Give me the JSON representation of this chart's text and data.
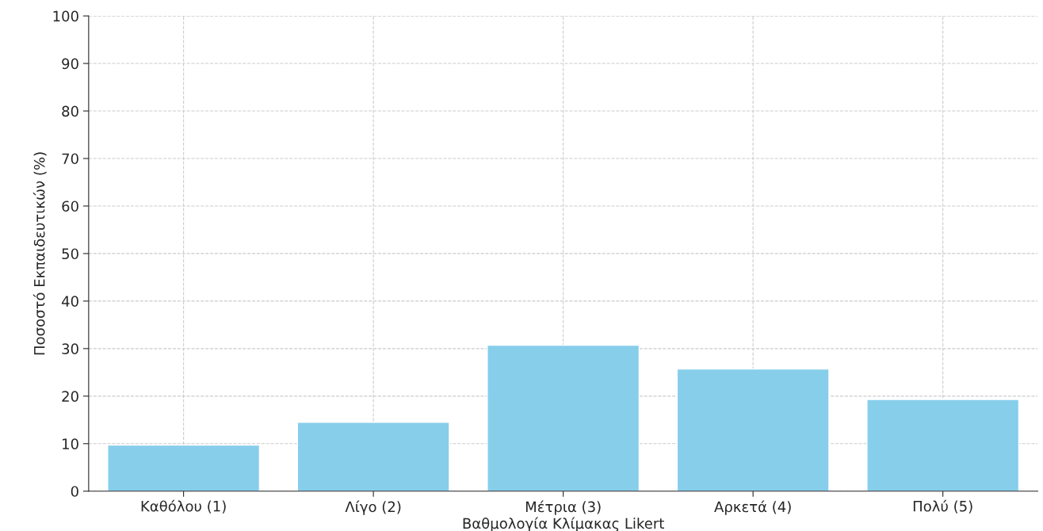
{
  "chart_data": {
    "type": "bar",
    "xlabel": "Βαθμολογία Κλίμακας Likert",
    "ylabel": "Ποσοστό Εκπαιδευτικών (%)",
    "categories": [
      "Καθόλου (1)",
      "Λίγο (2)",
      "Μέτρια (3)",
      "Αρκετά (4)",
      "Πολύ (5)"
    ],
    "values": [
      9.7,
      14.5,
      30.7,
      25.7,
      19.3
    ],
    "color": "#87ceeb",
    "ylim": [
      0,
      100
    ],
    "yticks": [
      0,
      10,
      20,
      30,
      40,
      50,
      60,
      70,
      80,
      90,
      100
    ],
    "grid": true
  }
}
